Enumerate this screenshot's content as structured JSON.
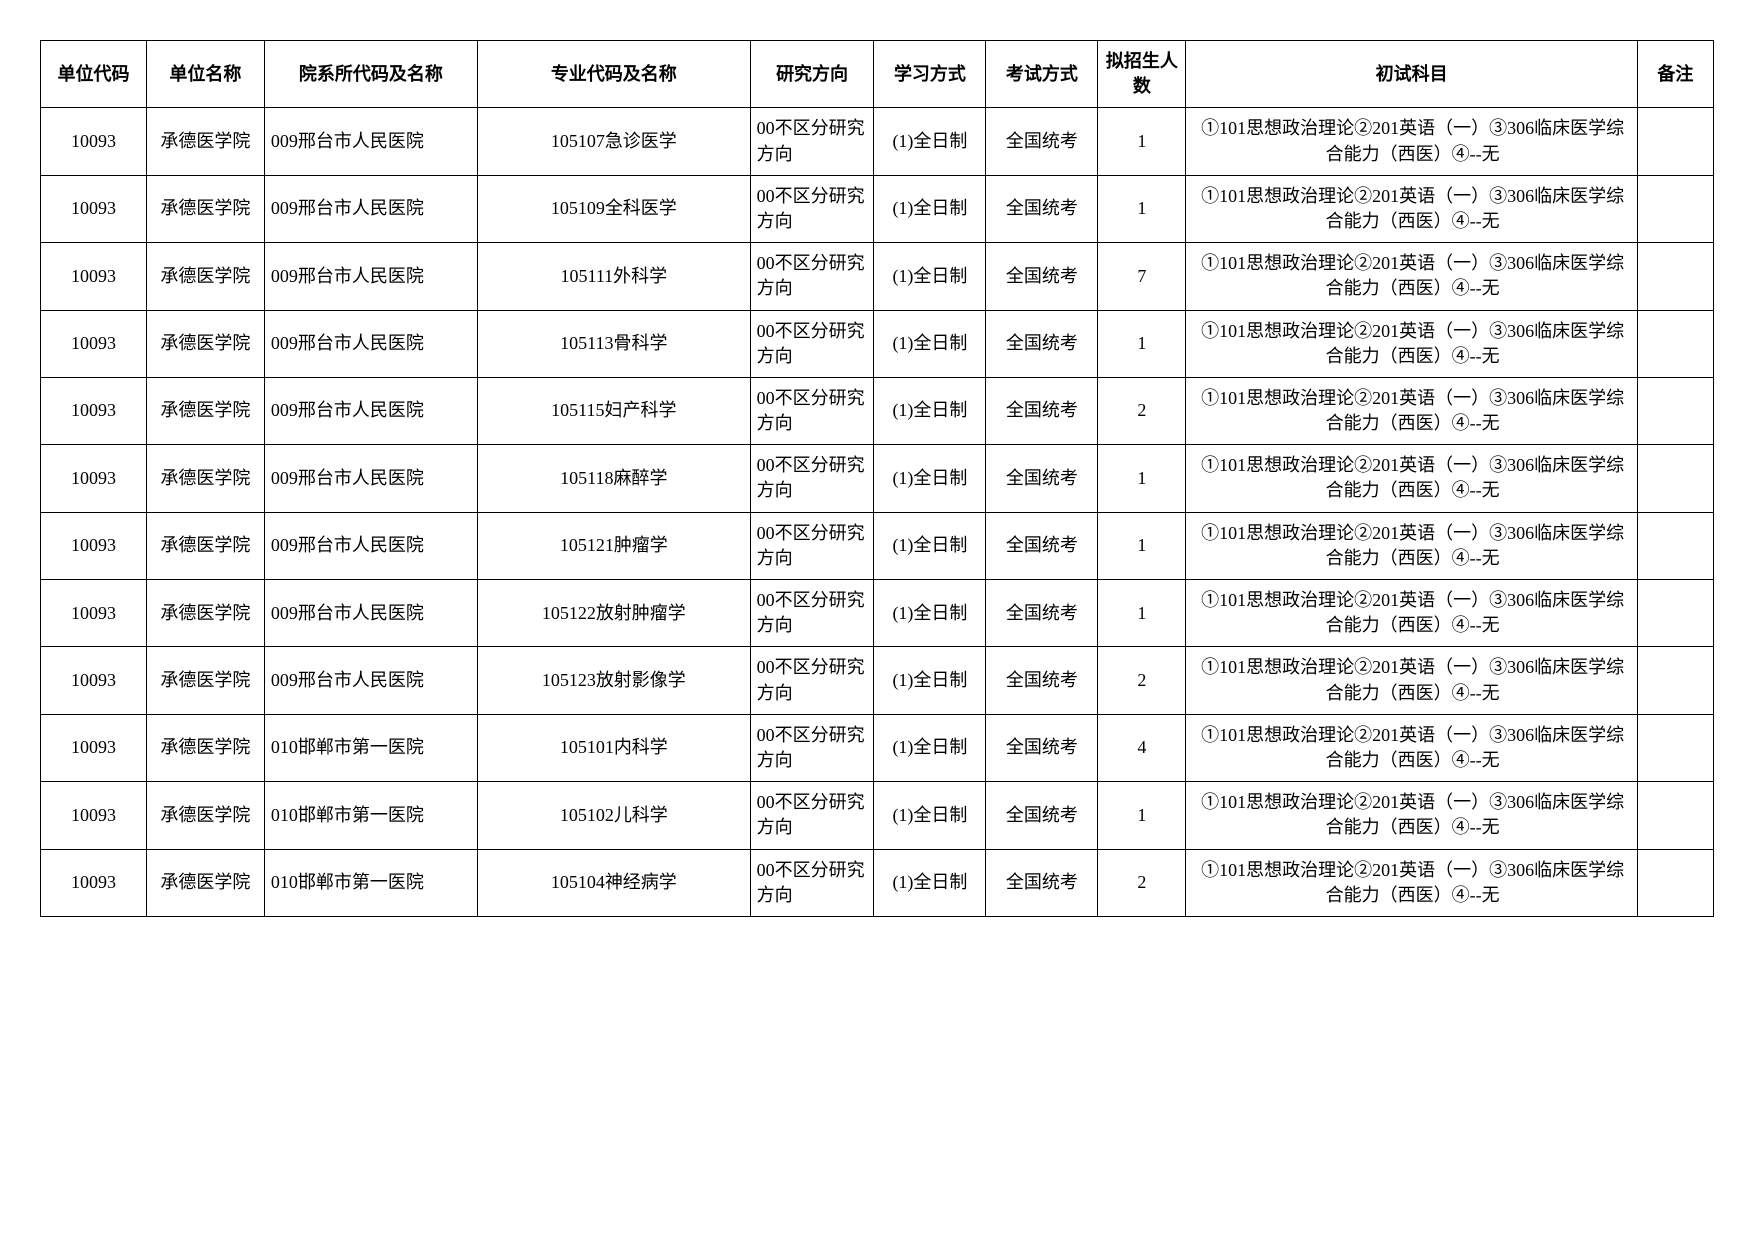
{
  "headers": {
    "code": "单位代码",
    "name": "单位名称",
    "dept": "院系所代码及名称",
    "major": "专业代码及名称",
    "direction": "研究方向",
    "study": "学习方式",
    "exam": "考试方式",
    "count": "拟招生人数",
    "subject": "初试科目",
    "note": "备注"
  },
  "rows": [
    {
      "code": "10093",
      "name": "承德医学院",
      "dept": "009邢台市人民医院",
      "major": "105107急诊医学",
      "direction": "00不区分研究方向",
      "study": "(1)全日制",
      "exam": "全国统考",
      "count": "1",
      "subject": "①101思想政治理论②201英语（一）③306临床医学综合能力（西医）④--无",
      "note": ""
    },
    {
      "code": "10093",
      "name": "承德医学院",
      "dept": "009邢台市人民医院",
      "major": "105109全科医学",
      "direction": "00不区分研究方向",
      "study": "(1)全日制",
      "exam": "全国统考",
      "count": "1",
      "subject": "①101思想政治理论②201英语（一）③306临床医学综合能力（西医）④--无",
      "note": ""
    },
    {
      "code": "10093",
      "name": "承德医学院",
      "dept": "009邢台市人民医院",
      "major": "105111外科学",
      "direction": "00不区分研究方向",
      "study": "(1)全日制",
      "exam": "全国统考",
      "count": "7",
      "subject": "①101思想政治理论②201英语（一）③306临床医学综合能力（西医）④--无",
      "note": ""
    },
    {
      "code": "10093",
      "name": "承德医学院",
      "dept": "009邢台市人民医院",
      "major": "105113骨科学",
      "direction": "00不区分研究方向",
      "study": "(1)全日制",
      "exam": "全国统考",
      "count": "1",
      "subject": "①101思想政治理论②201英语（一）③306临床医学综合能力（西医）④--无",
      "note": ""
    },
    {
      "code": "10093",
      "name": "承德医学院",
      "dept": "009邢台市人民医院",
      "major": "105115妇产科学",
      "direction": "00不区分研究方向",
      "study": "(1)全日制",
      "exam": "全国统考",
      "count": "2",
      "subject": "①101思想政治理论②201英语（一）③306临床医学综合能力（西医）④--无",
      "note": ""
    },
    {
      "code": "10093",
      "name": "承德医学院",
      "dept": "009邢台市人民医院",
      "major": "105118麻醉学",
      "direction": "00不区分研究方向",
      "study": "(1)全日制",
      "exam": "全国统考",
      "count": "1",
      "subject": "①101思想政治理论②201英语（一）③306临床医学综合能力（西医）④--无",
      "note": ""
    },
    {
      "code": "10093",
      "name": "承德医学院",
      "dept": "009邢台市人民医院",
      "major": "105121肿瘤学",
      "direction": "00不区分研究方向",
      "study": "(1)全日制",
      "exam": "全国统考",
      "count": "1",
      "subject": "①101思想政治理论②201英语（一）③306临床医学综合能力（西医）④--无",
      "note": ""
    },
    {
      "code": "10093",
      "name": "承德医学院",
      "dept": "009邢台市人民医院",
      "major": "105122放射肿瘤学",
      "direction": "00不区分研究方向",
      "study": "(1)全日制",
      "exam": "全国统考",
      "count": "1",
      "subject": "①101思想政治理论②201英语（一）③306临床医学综合能力（西医）④--无",
      "note": ""
    },
    {
      "code": "10093",
      "name": "承德医学院",
      "dept": "009邢台市人民医院",
      "major": "105123放射影像学",
      "direction": "00不区分研究方向",
      "study": "(1)全日制",
      "exam": "全国统考",
      "count": "2",
      "subject": "①101思想政治理论②201英语（一）③306临床医学综合能力（西医）④--无",
      "note": ""
    },
    {
      "code": "10093",
      "name": "承德医学院",
      "dept": "010邯郸市第一医院",
      "major": "105101内科学",
      "direction": "00不区分研究方向",
      "study": "(1)全日制",
      "exam": "全国统考",
      "count": "4",
      "subject": "①101思想政治理论②201英语（一）③306临床医学综合能力（西医）④--无",
      "note": ""
    },
    {
      "code": "10093",
      "name": "承德医学院",
      "dept": "010邯郸市第一医院",
      "major": "105102儿科学",
      "direction": "00不区分研究方向",
      "study": "(1)全日制",
      "exam": "全国统考",
      "count": "1",
      "subject": "①101思想政治理论②201英语（一）③306临床医学综合能力（西医）④--无",
      "note": ""
    },
    {
      "code": "10093",
      "name": "承德医学院",
      "dept": "010邯郸市第一医院",
      "major": "105104神经病学",
      "direction": "00不区分研究方向",
      "study": "(1)全日制",
      "exam": "全国统考",
      "count": "2",
      "subject": "①101思想政治理论②201英语（一）③306临床医学综合能力（西医）④--无",
      "note": ""
    }
  ]
}
